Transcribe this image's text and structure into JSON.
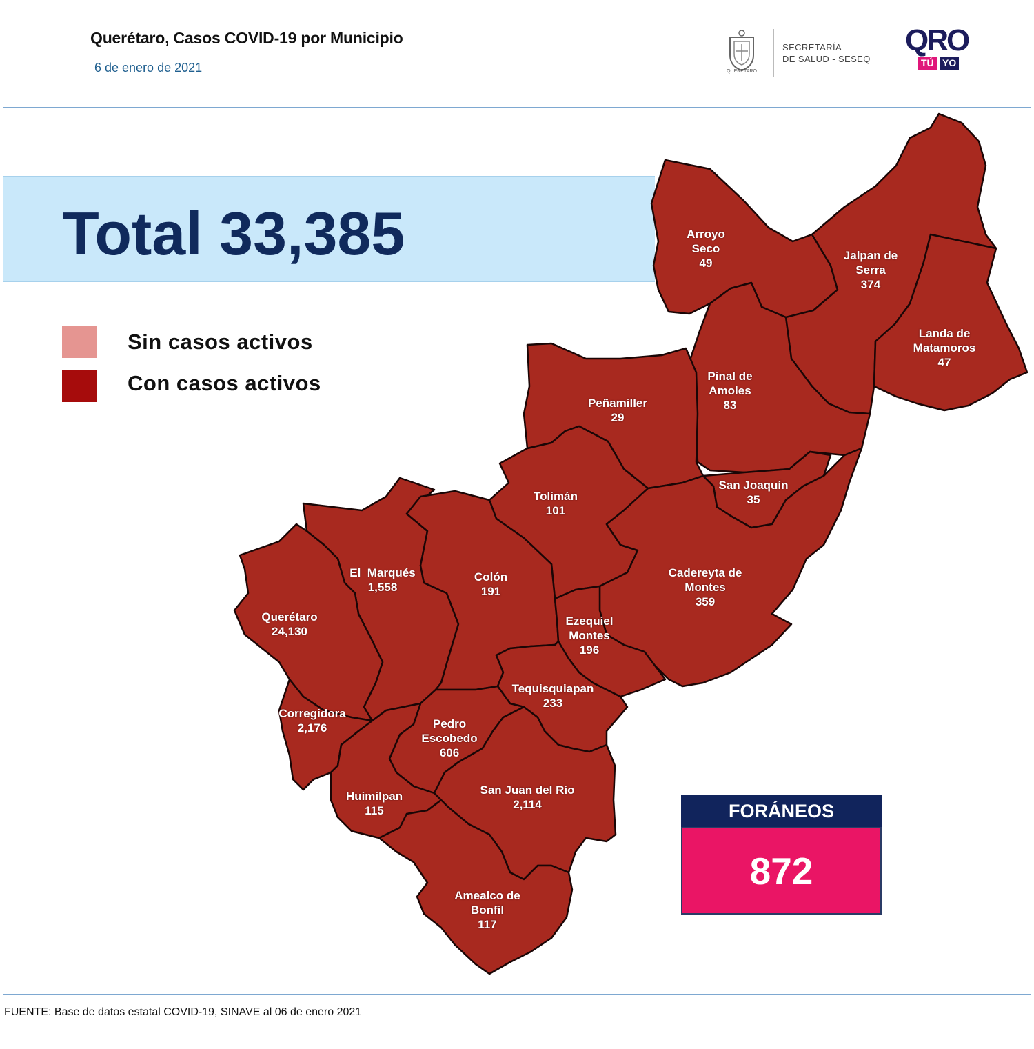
{
  "header": {
    "title": "Querétaro, Casos COVID-19 por Municipio",
    "date": "6 de enero de 2021",
    "secretaria_line1": "SECRETARÍA",
    "secretaria_line2": "DE SALUD - SESEQ",
    "seal_caption": "QUERÉTARO",
    "oro_word": "QRO",
    "tu": "TÚ",
    "yo": "YO"
  },
  "total": {
    "text": "Total 33,385",
    "value": 33385
  },
  "legend": {
    "sin_casos": {
      "label": "Sin casos activos",
      "color": "#e59591"
    },
    "con_casos": {
      "label": "Con casos activos",
      "color": "#a60c0c"
    }
  },
  "map": {
    "fill_color": "#a8291f",
    "municipios": [
      {
        "name_lines": [
          "Arroyo",
          "Seco"
        ],
        "cases": "49",
        "status": "con_casos"
      },
      {
        "name_lines": [
          "Jalpan de",
          "Serra"
        ],
        "cases": "374",
        "status": "con_casos"
      },
      {
        "name_lines": [
          "Landa de",
          "Matamoros"
        ],
        "cases": "47",
        "status": "con_casos"
      },
      {
        "name_lines": [
          "Pinal de",
          "Amoles"
        ],
        "cases": "83",
        "status": "con_casos"
      },
      {
        "name_lines": [
          "Peñamiller"
        ],
        "cases": "29",
        "status": "con_casos"
      },
      {
        "name_lines": [
          "San Joaquín"
        ],
        "cases": "35",
        "status": "con_casos"
      },
      {
        "name_lines": [
          "Tolimán"
        ],
        "cases": "101",
        "status": "con_casos"
      },
      {
        "name_lines": [
          "Cadereyta de",
          "Montes"
        ],
        "cases": "359",
        "status": "con_casos"
      },
      {
        "name_lines": [
          "El  Marqués"
        ],
        "cases": "1,558",
        "status": "con_casos"
      },
      {
        "name_lines": [
          "Colón"
        ],
        "cases": "191",
        "status": "con_casos"
      },
      {
        "name_lines": [
          "Querétaro"
        ],
        "cases": "24,130",
        "status": "con_casos"
      },
      {
        "name_lines": [
          "Ezequiel",
          "Montes"
        ],
        "cases": "196",
        "status": "con_casos"
      },
      {
        "name_lines": [
          "Tequisquiapan"
        ],
        "cases": "233",
        "status": "con_casos"
      },
      {
        "name_lines": [
          "Corregidora"
        ],
        "cases": "2,176",
        "status": "con_casos"
      },
      {
        "name_lines": [
          "Pedro",
          "Escobedo"
        ],
        "cases": "606",
        "status": "con_casos"
      },
      {
        "name_lines": [
          "San Juan del Río"
        ],
        "cases": "2,114",
        "status": "con_casos"
      },
      {
        "name_lines": [
          "Huimilpan"
        ],
        "cases": "115",
        "status": "con_casos"
      },
      {
        "name_lines": [
          "Amealco de",
          "Bonfil"
        ],
        "cases": "117",
        "status": "con_casos"
      }
    ]
  },
  "foraneos": {
    "label": "FORÁNEOS",
    "value": "872"
  },
  "source": "FUENTE:  Base de datos estatal COVID-19,  SINAVE  al 06 de enero 2021"
}
